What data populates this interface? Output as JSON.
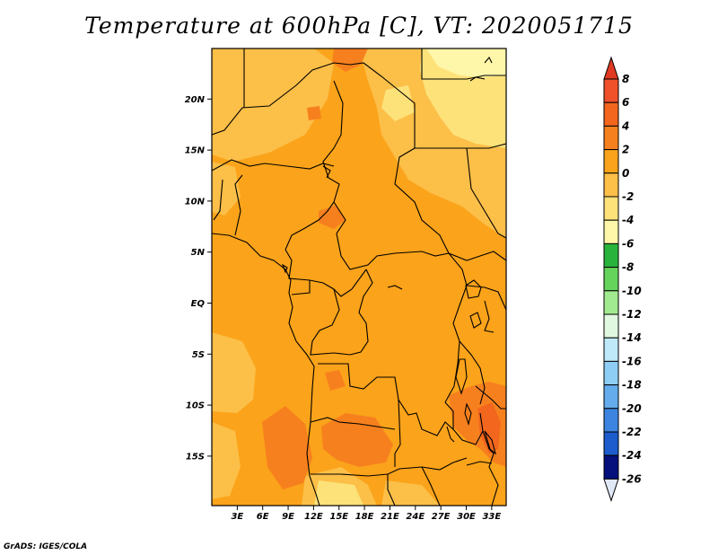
{
  "title": "Temperature at 600hPa [C], VT: 2020051715",
  "credit": "GrADS: IGES/COLA",
  "lat_labels": [
    {
      "lat": 20,
      "text": "20N"
    },
    {
      "lat": 15,
      "text": "15N"
    },
    {
      "lat": 10,
      "text": "10N"
    },
    {
      "lat": 5,
      "text": "5N"
    },
    {
      "lat": 0,
      "text": "EQ"
    },
    {
      "lat": -5,
      "text": "5S"
    },
    {
      "lat": -10,
      "text": "10S"
    },
    {
      "lat": -15,
      "text": "15S"
    }
  ],
  "lon_labels": [
    {
      "lon": 3,
      "text": "3E"
    },
    {
      "lon": 6,
      "text": "6E"
    },
    {
      "lon": 9,
      "text": "9E"
    },
    {
      "lon": 12,
      "text": "12E"
    },
    {
      "lon": 15,
      "text": "15E"
    },
    {
      "lon": 18,
      "text": "18E"
    },
    {
      "lon": 21,
      "text": "21E"
    },
    {
      "lon": 24,
      "text": "24E"
    },
    {
      "lon": 27,
      "text": "27E"
    },
    {
      "lon": 30,
      "text": "30E"
    },
    {
      "lon": 33,
      "text": "33E"
    }
  ],
  "colorbar": {
    "levels": [
      "8",
      "6",
      "4",
      "2",
      "0",
      "-2",
      "-4",
      "-6",
      "-8",
      "-10",
      "-12",
      "-14",
      "-16",
      "-18",
      "-20",
      "-22",
      "-24",
      "-26"
    ],
    "colors": [
      "#f0502a",
      "#f2661d",
      "#f7801e",
      "#fba31a",
      "#fcbf48",
      "#fde27a",
      "#fef6a8",
      "#28b43c",
      "#64d45a",
      "#a2ea90",
      "#e0f8e0",
      "#bfe8f8",
      "#8ecef4",
      "#64acec",
      "#3c84e0",
      "#1c5ccc",
      "#0a3ca8",
      "#06107c"
    ],
    "top_arrow_color": "#e03a22",
    "bottom_arrow_color": "#e0e8f8"
  },
  "field_colors": {
    "range_0_2": "#fcbf48",
    "range_2_4": "#fba31a",
    "range_4_6": "#f7801e",
    "range_6_8": "#f2661d",
    "range_m2_0": "#fde27a",
    "range_m4_m2": "#fef6a8"
  }
}
